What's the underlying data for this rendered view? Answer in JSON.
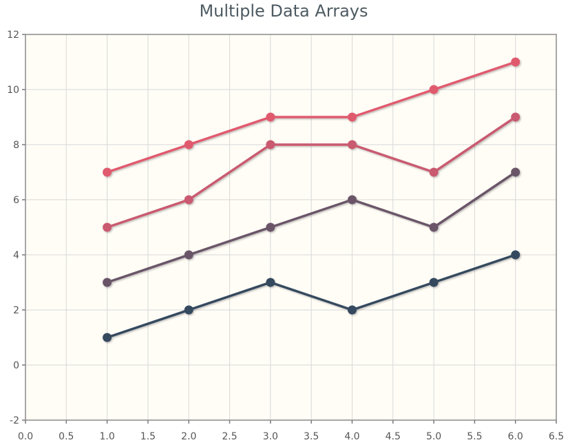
{
  "chart_data": {
    "type": "line",
    "title": "Multiple Data Arrays",
    "xlabel": "",
    "ylabel": "",
    "xlim": [
      0.0,
      6.5
    ],
    "ylim": [
      -2,
      12
    ],
    "x_ticks": [
      "0.0",
      "0.5",
      "1.0",
      "1.5",
      "2.0",
      "2.5",
      "3.0",
      "3.5",
      "4.0",
      "4.5",
      "5.0",
      "5.5",
      "6.0",
      "6.5"
    ],
    "y_ticks": [
      "-2",
      "0",
      "2",
      "4",
      "6",
      "8",
      "10",
      "12"
    ],
    "grid": true,
    "x": [
      1,
      2,
      3,
      4,
      5,
      6
    ],
    "series": [
      {
        "values": [
          1,
          2,
          3,
          2,
          3,
          4
        ],
        "color": "#34495e"
      },
      {
        "values": [
          3,
          4,
          5,
          6,
          5,
          7
        ],
        "color": "#6b5568"
      },
      {
        "values": [
          5,
          6,
          8,
          8,
          7,
          9
        ],
        "color": "#c95a6f"
      },
      {
        "values": [
          7,
          8,
          9,
          9,
          10,
          11
        ],
        "color": "#e05a6e"
      }
    ]
  }
}
